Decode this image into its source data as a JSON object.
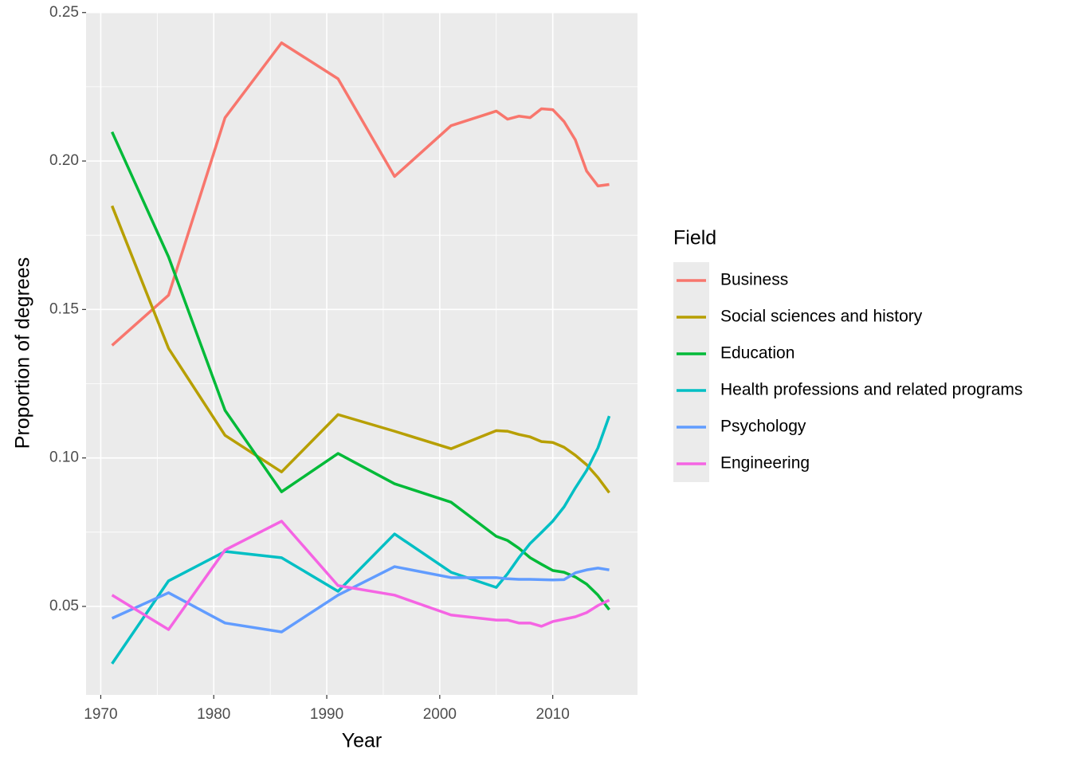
{
  "chart_data": {
    "type": "line",
    "x_label": "Year",
    "y_label": "Proportion of degrees",
    "legend_title": "Field",
    "legend": "right",
    "grid": true,
    "x": [
      1971,
      1976,
      1981,
      1986,
      1991,
      1996,
      2001,
      2005,
      2006,
      2007,
      2008,
      2009,
      2010,
      2011,
      2012,
      2013,
      2014,
      2015
    ],
    "xlim": [
      1968.7,
      2017.5
    ],
    "xticks": [
      1970,
      1980,
      1990,
      2000,
      2010
    ],
    "ylim": [
      0.0202,
      0.2502
    ],
    "yticks": [
      0.05,
      {
        "value": 0.1,
        "label": "0.10"
      },
      0.15,
      {
        "value": 0.2,
        "label": "0.20"
      },
      0.25
    ],
    "series": [
      {
        "name": "Business",
        "color": "#F8766D",
        "values": [
          0.1379,
          0.1548,
          0.2146,
          0.2398,
          0.2277,
          0.1948,
          0.2119,
          0.2168,
          0.2141,
          0.2151,
          0.2146,
          0.2176,
          0.2173,
          0.2133,
          0.2071,
          0.1966,
          0.1916,
          0.1921
        ]
      },
      {
        "name": "Social sciences and history",
        "color": "#B79F00",
        "values": [
          0.1849,
          0.1369,
          0.1076,
          0.0953,
          0.1146,
          0.109,
          0.1031,
          0.1092,
          0.109,
          0.1079,
          0.1071,
          0.1055,
          0.1052,
          0.1036,
          0.1009,
          0.0977,
          0.0934,
          0.0883
        ]
      },
      {
        "name": "Education",
        "color": "#00BA38",
        "values": [
          0.2098,
          0.1677,
          0.116,
          0.0886,
          0.1015,
          0.0913,
          0.0851,
          0.0736,
          0.0722,
          0.0696,
          0.0664,
          0.0642,
          0.0621,
          0.0615,
          0.0599,
          0.0575,
          0.0538,
          0.0489
        ]
      },
      {
        "name": "Health professions and related programs",
        "color": "#00BFC4",
        "values": [
          0.0307,
          0.0586,
          0.0685,
          0.0664,
          0.0551,
          0.0744,
          0.0615,
          0.0564,
          0.061,
          0.0664,
          0.0712,
          0.0749,
          0.0787,
          0.0835,
          0.0899,
          0.0958,
          0.1034,
          0.1141
        ]
      },
      {
        "name": "Psychology",
        "color": "#619CFF",
        "values": [
          0.046,
          0.0546,
          0.0444,
          0.0414,
          0.0538,
          0.0634,
          0.0597,
          0.0597,
          0.0593,
          0.0591,
          0.0591,
          0.059,
          0.0589,
          0.059,
          0.0613,
          0.0623,
          0.0629,
          0.0623
        ]
      },
      {
        "name": "Engineering",
        "color": "#F564E3",
        "values": [
          0.0538,
          0.0422,
          0.069,
          0.0787,
          0.057,
          0.0538,
          0.0471,
          0.0454,
          0.0454,
          0.0444,
          0.0444,
          0.0433,
          0.0449,
          0.0457,
          0.0465,
          0.0479,
          0.0503,
          0.0521
        ]
      }
    ]
  }
}
